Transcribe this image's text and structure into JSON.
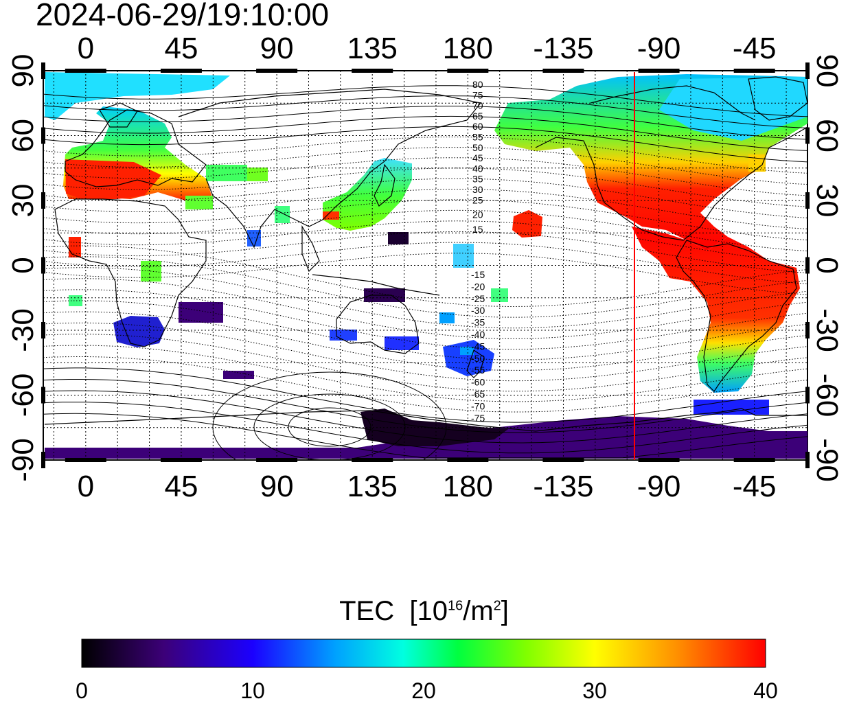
{
  "timestamp": "2024-06-29/19:10:00",
  "x_ticks": [
    "0",
    "45",
    "90",
    "135",
    "180",
    "-135",
    "-90",
    "-45"
  ],
  "y_ticks": [
    "90",
    "60",
    "30",
    "0",
    "-30",
    "-60",
    "-90"
  ],
  "contour_labels_north": [
    "80",
    "75",
    "70",
    "65",
    "60",
    "55",
    "50",
    "45",
    "40",
    "35",
    "30",
    "25",
    "20",
    "15"
  ],
  "contour_labels_south": [
    "-15",
    "-20",
    "-25",
    "-30",
    "-35",
    "-40",
    "-45",
    "-50",
    "-55",
    "-60",
    "-65",
    "-70",
    "-75"
  ],
  "terminator_color": "#ff0000",
  "colorbar": {
    "title_text": "TEC",
    "title_unit_base": "[10",
    "title_unit_exp": "16",
    "title_unit_mid": "/m",
    "title_unit_exp2": "2",
    "title_unit_end": "]",
    "min": 0,
    "max": 40,
    "tick_labels": [
      "0",
      "10",
      "20",
      "30",
      "40"
    ],
    "colors": [
      "#000000",
      "#3c0078",
      "#1b00ff",
      "#00a0ff",
      "#00ffe0",
      "#00ff40",
      "#80ff00",
      "#ffff00",
      "#ff9000",
      "#ff0000"
    ]
  },
  "map_data": {
    "projection": "equirectangular",
    "lon_center_start": -20,
    "lat_range": [
      -90,
      90
    ],
    "terminator_longitude": -102,
    "regions": [
      {
        "name": "Europe",
        "tec_level": 36
      },
      {
        "name": "North America",
        "tec_level": 38
      },
      {
        "name": "South America",
        "tec_level": 40
      },
      {
        "name": "East Asia",
        "tec_level": 26
      },
      {
        "name": "Australia",
        "tec_level": 7
      },
      {
        "name": "Antarctica",
        "tec_level": 3
      }
    ]
  }
}
